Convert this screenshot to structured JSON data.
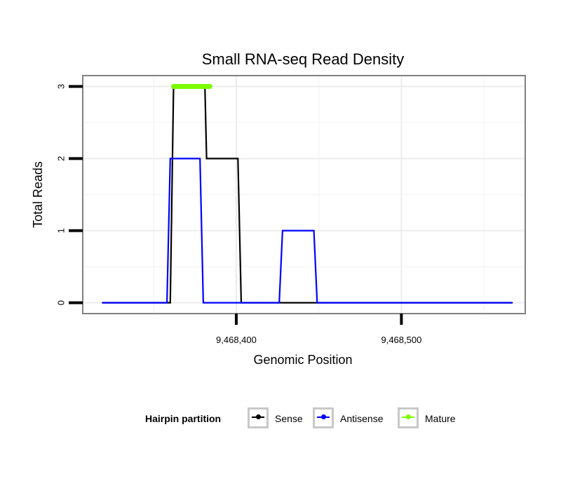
{
  "chart_data": {
    "type": "line",
    "title": "Small RNA-seq Read Density",
    "xlabel": "Genomic Position",
    "ylabel": "Total Reads",
    "xlim": [
      9468307,
      9468575
    ],
    "ylim": [
      -0.15,
      3.15
    ],
    "x_ticks": [
      9468400,
      9468500
    ],
    "x_tick_labels": [
      "9,468,400",
      "9,468,500"
    ],
    "y_ticks": [
      0,
      1,
      2,
      3
    ],
    "y_tick_labels": [
      "0",
      "1",
      "2",
      "3"
    ],
    "grid": true,
    "legend_position": "bottom",
    "legend_title": "Hairpin partition",
    "series": [
      {
        "name": "Sense",
        "color": "#000000",
        "x": [
          9468319,
          9468360,
          9468362,
          9468381,
          9468382,
          9468401,
          9468403,
          9468567
        ],
        "y": [
          0,
          0,
          3,
          3,
          2,
          2,
          0,
          0
        ]
      },
      {
        "name": "Antisense",
        "color": "#0000ff",
        "x": [
          9468319,
          9468358,
          9468360,
          9468378,
          9468380,
          9468403,
          9468405,
          9468426,
          9468428,
          9468447,
          9468449,
          9468567
        ],
        "y": [
          0,
          0,
          2,
          2,
          0,
          0,
          0,
          0,
          1,
          1,
          0,
          0
        ]
      },
      {
        "name": "Mature",
        "color": "#7cfc00",
        "x": [
          9468362,
          9468384
        ],
        "y": [
          3,
          3
        ]
      }
    ]
  }
}
